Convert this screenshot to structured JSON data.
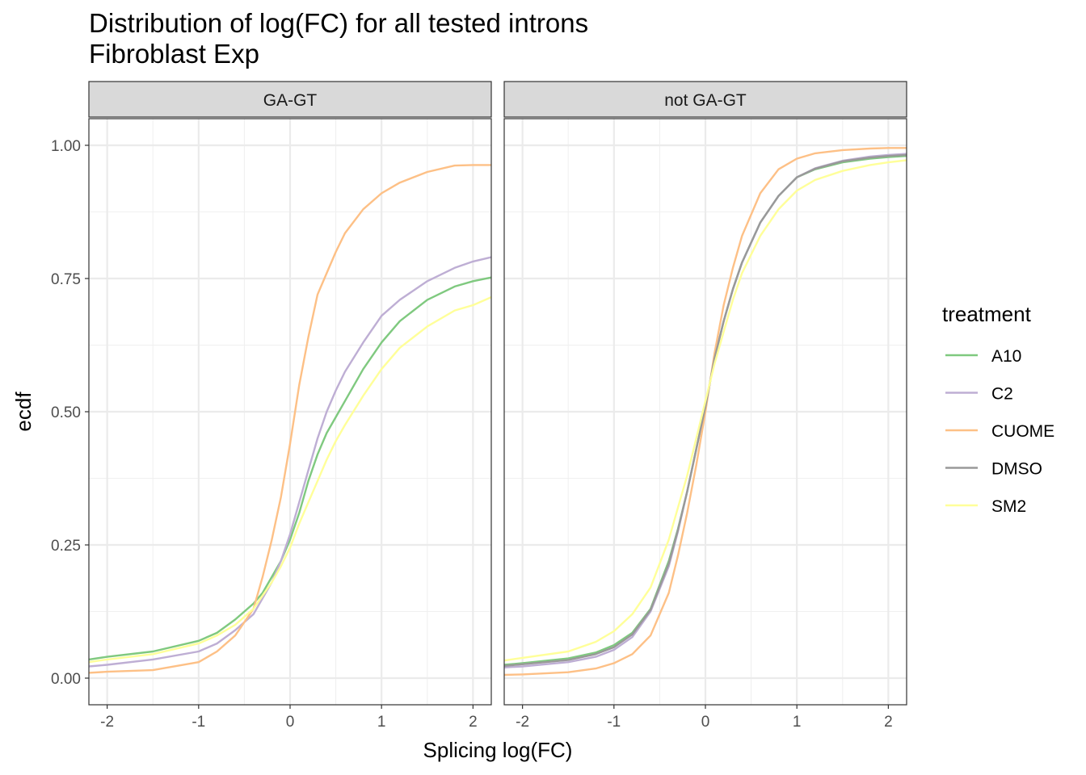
{
  "chart_data": {
    "type": "line",
    "title": "Distribution of log(FC) for all tested introns",
    "subtitle": "Fibroblast Exp",
    "xlabel": "Splicing log(FC)",
    "ylabel": "ecdf",
    "xlim": [
      -2.2,
      2.2
    ],
    "ylim": [
      -0.05,
      1.05
    ],
    "x_ticks": [
      -2,
      -1,
      0,
      1,
      2
    ],
    "x_tick_labels": [
      "-2",
      "-1",
      "0",
      "1",
      "2"
    ],
    "y_ticks": [
      0,
      0.25,
      0.5,
      0.75,
      1
    ],
    "y_tick_labels": [
      "0.00",
      "0.25",
      "0.50",
      "0.75",
      "1.00"
    ],
    "grid": true,
    "legend": {
      "title": "treatment",
      "placement": "right",
      "entries": [
        {
          "name": "A10",
          "color": "#7fc97f"
        },
        {
          "name": "C2",
          "color": "#beaed4"
        },
        {
          "name": "CUOME",
          "color": "#fdc086"
        },
        {
          "name": "DMSO",
          "color": "#999999"
        },
        {
          "name": "SM2",
          "color": "#ffff99"
        }
      ]
    },
    "facets": [
      {
        "label": "GA-GT",
        "series": [
          {
            "name": "A10",
            "color": "#7fc97f",
            "x": [
              -2.2,
              -2.0,
              -1.5,
              -1.0,
              -0.8,
              -0.6,
              -0.4,
              -0.3,
              -0.2,
              -0.1,
              0.0,
              0.1,
              0.2,
              0.3,
              0.4,
              0.5,
              0.6,
              0.8,
              1.0,
              1.2,
              1.5,
              1.8,
              2.0,
              2.2
            ],
            "y": [
              0.035,
              0.04,
              0.05,
              0.07,
              0.085,
              0.11,
              0.14,
              0.16,
              0.19,
              0.22,
              0.26,
              0.31,
              0.37,
              0.42,
              0.46,
              0.49,
              0.52,
              0.58,
              0.63,
              0.67,
              0.71,
              0.735,
              0.745,
              0.752
            ]
          },
          {
            "name": "C2",
            "color": "#beaed4",
            "x": [
              -2.2,
              -2.0,
              -1.5,
              -1.0,
              -0.8,
              -0.6,
              -0.4,
              -0.3,
              -0.2,
              -0.1,
              0.0,
              0.1,
              0.2,
              0.3,
              0.4,
              0.5,
              0.6,
              0.8,
              1.0,
              1.2,
              1.5,
              1.8,
              2.0,
              2.2
            ],
            "y": [
              0.022,
              0.025,
              0.035,
              0.05,
              0.065,
              0.09,
              0.12,
              0.15,
              0.18,
              0.22,
              0.27,
              0.33,
              0.39,
              0.45,
              0.5,
              0.54,
              0.575,
              0.63,
              0.68,
              0.71,
              0.745,
              0.77,
              0.782,
              0.79
            ]
          },
          {
            "name": "CUOME",
            "color": "#fdc086",
            "x": [
              -2.2,
              -2.0,
              -1.5,
              -1.0,
              -0.8,
              -0.6,
              -0.4,
              -0.3,
              -0.2,
              -0.1,
              0.0,
              0.1,
              0.2,
              0.3,
              0.4,
              0.5,
              0.6,
              0.8,
              1.0,
              1.2,
              1.5,
              1.8,
              2.0,
              2.2
            ],
            "y": [
              0.01,
              0.012,
              0.015,
              0.03,
              0.05,
              0.08,
              0.13,
              0.19,
              0.26,
              0.34,
              0.44,
              0.55,
              0.64,
              0.72,
              0.76,
              0.8,
              0.835,
              0.88,
              0.91,
              0.93,
              0.95,
              0.962,
              0.963,
              0.963
            ]
          },
          {
            "name": "SM2",
            "color": "#ffff99",
            "x": [
              -2.2,
              -2.0,
              -1.5,
              -1.0,
              -0.8,
              -0.6,
              -0.4,
              -0.3,
              -0.2,
              -0.1,
              0.0,
              0.1,
              0.2,
              0.3,
              0.4,
              0.5,
              0.6,
              0.8,
              1.0,
              1.2,
              1.5,
              1.8,
              2.0,
              2.2
            ],
            "y": [
              0.03,
              0.035,
              0.045,
              0.065,
              0.08,
              0.1,
              0.13,
              0.155,
              0.18,
              0.21,
              0.245,
              0.29,
              0.33,
              0.37,
              0.41,
              0.445,
              0.475,
              0.53,
              0.58,
              0.62,
              0.66,
              0.69,
              0.7,
              0.715
            ]
          }
        ]
      },
      {
        "label": "not GA-GT",
        "series": [
          {
            "name": "A10",
            "color": "#7fc97f",
            "x": [
              -2.2,
              -2.0,
              -1.5,
              -1.2,
              -1.0,
              -0.8,
              -0.6,
              -0.4,
              -0.3,
              -0.2,
              -0.1,
              0.0,
              0.1,
              0.2,
              0.3,
              0.4,
              0.6,
              0.8,
              1.0,
              1.2,
              1.5,
              1.8,
              2.0,
              2.2
            ],
            "y": [
              0.025,
              0.028,
              0.037,
              0.048,
              0.062,
              0.085,
              0.13,
              0.22,
              0.28,
              0.35,
              0.43,
              0.51,
              0.6,
              0.67,
              0.73,
              0.78,
              0.855,
              0.905,
              0.94,
              0.955,
              0.968,
              0.975,
              0.978,
              0.98
            ]
          },
          {
            "name": "C2",
            "color": "#beaed4",
            "x": [
              -2.2,
              -2.0,
              -1.5,
              -1.2,
              -1.0,
              -0.8,
              -0.6,
              -0.4,
              -0.3,
              -0.2,
              -0.1,
              0.0,
              0.1,
              0.2,
              0.3,
              0.4,
              0.6,
              0.8,
              1.0,
              1.2,
              1.5,
              1.8,
              2.0,
              2.2
            ],
            "y": [
              0.02,
              0.022,
              0.03,
              0.04,
              0.053,
              0.077,
              0.125,
              0.21,
              0.275,
              0.35,
              0.43,
              0.51,
              0.6,
              0.67,
              0.73,
              0.78,
              0.855,
              0.905,
              0.94,
              0.957,
              0.971,
              0.979,
              0.982,
              0.984
            ]
          },
          {
            "name": "CUOME",
            "color": "#fdc086",
            "x": [
              -2.2,
              -2.0,
              -1.5,
              -1.2,
              -1.0,
              -0.8,
              -0.6,
              -0.4,
              -0.3,
              -0.2,
              -0.1,
              0.0,
              0.1,
              0.2,
              0.3,
              0.4,
              0.6,
              0.8,
              1.0,
              1.2,
              1.5,
              1.8,
              2.0,
              2.2
            ],
            "y": [
              0.006,
              0.007,
              0.011,
              0.018,
              0.028,
              0.045,
              0.08,
              0.16,
              0.23,
              0.31,
              0.4,
              0.5,
              0.61,
              0.7,
              0.77,
              0.83,
              0.91,
              0.955,
              0.975,
              0.985,
              0.991,
              0.994,
              0.995,
              0.995
            ]
          },
          {
            "name": "DMSO",
            "color": "#999999",
            "x": [
              -2.2,
              -2.0,
              -1.5,
              -1.2,
              -1.0,
              -0.8,
              -0.6,
              -0.4,
              -0.3,
              -0.2,
              -0.1,
              0.0,
              0.1,
              0.2,
              0.3,
              0.4,
              0.6,
              0.8,
              1.0,
              1.2,
              1.5,
              1.8,
              2.0,
              2.2
            ],
            "y": [
              0.023,
              0.026,
              0.034,
              0.045,
              0.058,
              0.082,
              0.128,
              0.215,
              0.278,
              0.35,
              0.43,
              0.51,
              0.6,
              0.67,
              0.73,
              0.78,
              0.855,
              0.905,
              0.94,
              0.956,
              0.97,
              0.977,
              0.98,
              0.982
            ]
          },
          {
            "name": "SM2",
            "color": "#ffff99",
            "x": [
              -2.2,
              -2.0,
              -1.5,
              -1.2,
              -1.0,
              -0.8,
              -0.6,
              -0.4,
              -0.3,
              -0.2,
              -0.1,
              0.0,
              0.1,
              0.2,
              0.3,
              0.4,
              0.6,
              0.8,
              1.0,
              1.2,
              1.5,
              1.8,
              2.0,
              2.2
            ],
            "y": [
              0.033,
              0.038,
              0.05,
              0.068,
              0.088,
              0.12,
              0.17,
              0.26,
              0.32,
              0.38,
              0.45,
              0.52,
              0.59,
              0.65,
              0.71,
              0.76,
              0.83,
              0.88,
              0.915,
              0.935,
              0.952,
              0.963,
              0.968,
              0.972
            ]
          }
        ]
      }
    ]
  }
}
